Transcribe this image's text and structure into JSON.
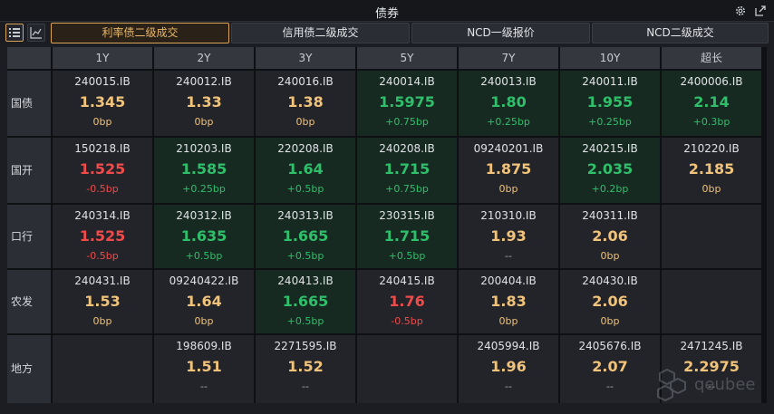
{
  "window": {
    "title": "债券"
  },
  "header_icons": [
    "gear-icon",
    "popout-icon"
  ],
  "toolbar": {
    "view_buttons": [
      {
        "name": "list-view-icon",
        "active": true
      },
      {
        "name": "chart-view-icon",
        "active": false
      }
    ],
    "tabs": [
      {
        "label": "利率债二级成交",
        "active": true
      },
      {
        "label": "信用债二级成交",
        "active": false
      },
      {
        "label": "NCD一级报价",
        "active": false
      },
      {
        "label": "NCD二级成交",
        "active": false
      }
    ]
  },
  "columns": [
    "1Y",
    "2Y",
    "3Y",
    "5Y",
    "7Y",
    "10Y",
    "超长"
  ],
  "rows": [
    {
      "label": "国债",
      "cells": [
        {
          "code": "240015.IB",
          "rate": "1.345",
          "chg": "0bp",
          "dir": "neutral"
        },
        {
          "code": "240012.IB",
          "rate": "1.33",
          "chg": "0bp",
          "dir": "neutral"
        },
        {
          "code": "240016.IB",
          "rate": "1.38",
          "chg": "0bp",
          "dir": "neutral"
        },
        {
          "code": "240014.IB",
          "rate": "1.5975",
          "chg": "+0.75bp",
          "dir": "up",
          "hl": true
        },
        {
          "code": "240013.IB",
          "rate": "1.80",
          "chg": "+0.25bp",
          "dir": "up",
          "hl": true
        },
        {
          "code": "240011.IB",
          "rate": "1.955",
          "chg": "+0.25bp",
          "dir": "up",
          "hl": true
        },
        {
          "code": "2400006.IB",
          "rate": "2.14",
          "chg": "+0.3bp",
          "dir": "up",
          "hl": true
        }
      ]
    },
    {
      "label": "国开",
      "cells": [
        {
          "code": "150218.IB",
          "rate": "1.525",
          "chg": "-0.5bp",
          "dir": "down"
        },
        {
          "code": "210203.IB",
          "rate": "1.585",
          "chg": "+0.25bp",
          "dir": "up",
          "hl": true
        },
        {
          "code": "220208.IB",
          "rate": "1.64",
          "chg": "+0.5bp",
          "dir": "up",
          "hl": true
        },
        {
          "code": "240208.IB",
          "rate": "1.715",
          "chg": "+0.75bp",
          "dir": "up",
          "hl": true
        },
        {
          "code": "09240201.IB",
          "rate": "1.875",
          "chg": "0bp",
          "dir": "neutral"
        },
        {
          "code": "240215.IB",
          "rate": "2.035",
          "chg": "+0.2bp",
          "dir": "up",
          "hl": true
        },
        {
          "code": "210220.IB",
          "rate": "2.185",
          "chg": "0bp",
          "dir": "neutral"
        }
      ]
    },
    {
      "label": "口行",
      "cells": [
        {
          "code": "240314.IB",
          "rate": "1.525",
          "chg": "-0.5bp",
          "dir": "down"
        },
        {
          "code": "240312.IB",
          "rate": "1.635",
          "chg": "+0.5bp",
          "dir": "up",
          "hl": true
        },
        {
          "code": "240313.IB",
          "rate": "1.665",
          "chg": "+0.5bp",
          "dir": "up",
          "hl": true
        },
        {
          "code": "230315.IB",
          "rate": "1.715",
          "chg": "+0.5bp",
          "dir": "up",
          "hl": true
        },
        {
          "code": "210310.IB",
          "rate": "1.93",
          "chg": "--",
          "dir": "neutral",
          "chg_none": true
        },
        {
          "code": "240311.IB",
          "rate": "2.06",
          "chg": "0bp",
          "dir": "neutral"
        },
        {
          "code": "",
          "rate": "",
          "chg": "",
          "dir": "none"
        }
      ]
    },
    {
      "label": "农发",
      "cells": [
        {
          "code": "240431.IB",
          "rate": "1.53",
          "chg": "0bp",
          "dir": "neutral"
        },
        {
          "code": "09240422.IB",
          "rate": "1.64",
          "chg": "0bp",
          "dir": "neutral"
        },
        {
          "code": "240413.IB",
          "rate": "1.665",
          "chg": "+0.5bp",
          "dir": "up",
          "hl": true
        },
        {
          "code": "240415.IB",
          "rate": "1.76",
          "chg": "-0.5bp",
          "dir": "down"
        },
        {
          "code": "200404.IB",
          "rate": "1.83",
          "chg": "0bp",
          "dir": "neutral"
        },
        {
          "code": "240430.IB",
          "rate": "2.06",
          "chg": "0bp",
          "dir": "neutral"
        },
        {
          "code": "",
          "rate": "",
          "chg": "",
          "dir": "none"
        }
      ]
    },
    {
      "label": "地方",
      "cells": [
        {
          "code": "",
          "rate": "",
          "chg": "",
          "dir": "none"
        },
        {
          "code": "198609.IB",
          "rate": "1.51",
          "chg": "--",
          "dir": "neutral",
          "chg_none": true
        },
        {
          "code": "2271595.IB",
          "rate": "1.52",
          "chg": "--",
          "dir": "neutral",
          "chg_none": true
        },
        {
          "code": "",
          "rate": "",
          "chg": "",
          "dir": "none"
        },
        {
          "code": "2405994.IB",
          "rate": "1.96",
          "chg": "--",
          "dir": "neutral",
          "chg_none": true
        },
        {
          "code": "2405676.IB",
          "rate": "2.07",
          "chg": "--",
          "dir": "neutral",
          "chg_none": true
        },
        {
          "code": "2471245.IB",
          "rate": "2.2975",
          "chg": "--",
          "dir": "neutral",
          "chg_none": true
        }
      ]
    }
  ],
  "watermark": {
    "text": "qeubee"
  }
}
